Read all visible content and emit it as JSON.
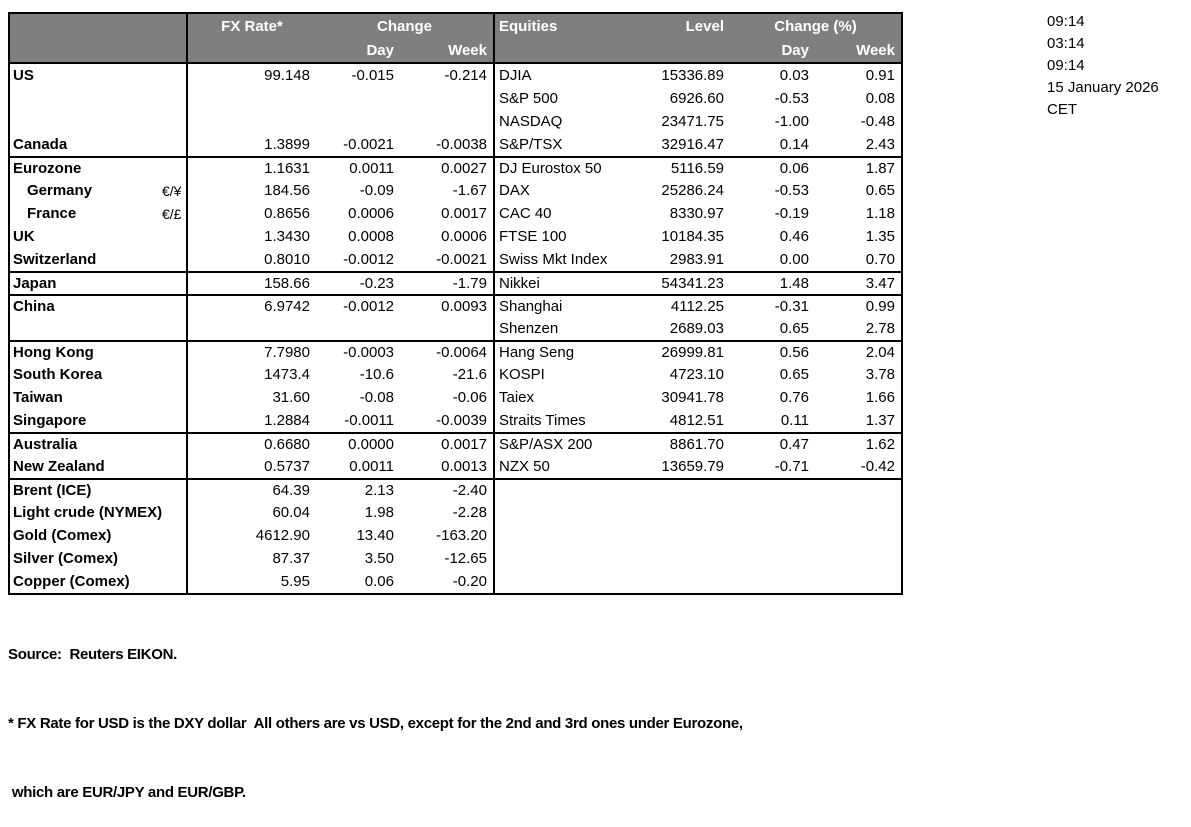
{
  "colors": {
    "header_bg": "#7f7f7f",
    "header_text": "#ffffff",
    "border": "#000000",
    "text": "#000000"
  },
  "header": {
    "fx_rate": "FX Rate*",
    "change": "Change",
    "equities": "Equities",
    "level": "Level",
    "change_pct": "Change (%)",
    "day": "Day",
    "week": "Week"
  },
  "rows": [
    {
      "label": "US",
      "sym": "",
      "fx": "99.148",
      "fx_day": "-0.015",
      "fx_week": "-0.214",
      "eq": "DJIA",
      "level": "15336.89",
      "eq_day": "0.03",
      "eq_week": "0.91",
      "group_start": false,
      "indent": false
    },
    {
      "label": "",
      "sym": "",
      "fx": "",
      "fx_day": "",
      "fx_week": "",
      "eq": "S&P 500",
      "level": "6926.60",
      "eq_day": "-0.53",
      "eq_week": "0.08",
      "group_start": false,
      "indent": false
    },
    {
      "label": "",
      "sym": "",
      "fx": "",
      "fx_day": "",
      "fx_week": "",
      "eq": "NASDAQ",
      "level": "23471.75",
      "eq_day": "-1.00",
      "eq_week": "-0.48",
      "group_start": false,
      "indent": false
    },
    {
      "label": "Canada",
      "sym": "",
      "fx": "1.3899",
      "fx_day": "-0.0021",
      "fx_week": "-0.0038",
      "eq": "S&P/TSX",
      "level": "32916.47",
      "eq_day": "0.14",
      "eq_week": "2.43",
      "group_start": false,
      "indent": false
    },
    {
      "label": "Eurozone",
      "sym": "",
      "fx": "1.1631",
      "fx_day": "0.0011",
      "fx_week": "0.0027",
      "eq": "DJ Eurostox 50",
      "level": "5116.59",
      "eq_day": "0.06",
      "eq_week": "1.87",
      "group_start": true,
      "indent": false
    },
    {
      "label": "Germany",
      "sym": "€/¥",
      "fx": "184.56",
      "fx_day": "-0.09",
      "fx_week": "-1.67",
      "eq": "DAX",
      "level": "25286.24",
      "eq_day": "-0.53",
      "eq_week": "0.65",
      "group_start": false,
      "indent": true
    },
    {
      "label": "France",
      "sym": "€/£",
      "fx": "0.8656",
      "fx_day": "0.0006",
      "fx_week": "0.0017",
      "eq": "CAC 40",
      "level": "8330.97",
      "eq_day": "-0.19",
      "eq_week": "1.18",
      "group_start": false,
      "indent": true
    },
    {
      "label": "UK",
      "sym": "",
      "fx": "1.3430",
      "fx_day": "0.0008",
      "fx_week": "0.0006",
      "eq": "FTSE 100",
      "level": "10184.35",
      "eq_day": "0.46",
      "eq_week": "1.35",
      "group_start": false,
      "indent": false
    },
    {
      "label": "Switzerland",
      "sym": "",
      "fx": "0.8010",
      "fx_day": "-0.0012",
      "fx_week": "-0.0021",
      "eq": "Swiss Mkt Index",
      "level": "2983.91",
      "eq_day": "0.00",
      "eq_week": "0.70",
      "group_start": false,
      "indent": false
    },
    {
      "label": "Japan",
      "sym": "",
      "fx": "158.66",
      "fx_day": "-0.23",
      "fx_week": "-1.79",
      "eq": "Nikkei",
      "level": "54341.23",
      "eq_day": "1.48",
      "eq_week": "3.47",
      "group_start": true,
      "indent": false
    },
    {
      "label": "China",
      "sym": "",
      "fx": "6.9742",
      "fx_day": "-0.0012",
      "fx_week": "0.0093",
      "eq": "Shanghai",
      "level": "4112.25",
      "eq_day": "-0.31",
      "eq_week": "0.99",
      "group_start": true,
      "indent": false
    },
    {
      "label": "",
      "sym": "",
      "fx": "",
      "fx_day": "",
      "fx_week": "",
      "eq": "Shenzen",
      "level": "2689.03",
      "eq_day": "0.65",
      "eq_week": "2.78",
      "group_start": false,
      "indent": false
    },
    {
      "label": "Hong Kong",
      "sym": "",
      "fx": "7.7980",
      "fx_day": "-0.0003",
      "fx_week": "-0.0064",
      "eq": "Hang Seng",
      "level": "26999.81",
      "eq_day": "0.56",
      "eq_week": "2.04",
      "group_start": true,
      "indent": false
    },
    {
      "label": "South Korea",
      "sym": "",
      "fx": "1473.4",
      "fx_day": "-10.6",
      "fx_week": "-21.6",
      "eq": "KOSPI",
      "level": "4723.10",
      "eq_day": "0.65",
      "eq_week": "3.78",
      "group_start": false,
      "indent": false
    },
    {
      "label": "Taiwan",
      "sym": "",
      "fx": "31.60",
      "fx_day": "-0.08",
      "fx_week": "-0.06",
      "eq": "Taiex",
      "level": "30941.78",
      "eq_day": "0.76",
      "eq_week": "1.66",
      "group_start": false,
      "indent": false
    },
    {
      "label": "Singapore",
      "sym": "",
      "fx": "1.2884",
      "fx_day": "-0.0011",
      "fx_week": "-0.0039",
      "eq": "Straits Times",
      "level": "4812.51",
      "eq_day": "0.11",
      "eq_week": "1.37",
      "group_start": false,
      "indent": false
    },
    {
      "label": "Australia",
      "sym": "",
      "fx": "0.6680",
      "fx_day": "0.0000",
      "fx_week": "0.0017",
      "eq": "S&P/ASX  200",
      "level": "8861.70",
      "eq_day": "0.47",
      "eq_week": "1.62",
      "group_start": true,
      "indent": false
    },
    {
      "label": "New Zealand",
      "sym": "",
      "fx": "0.5737",
      "fx_day": "0.0011",
      "fx_week": "0.0013",
      "eq": "NZX 50",
      "level": "13659.79",
      "eq_day": "-0.71",
      "eq_week": "-0.42",
      "group_start": false,
      "indent": false
    },
    {
      "label": "Brent (ICE)",
      "sym": "",
      "fx": "64.39",
      "fx_day": "2.13",
      "fx_week": "-2.40",
      "eq": "",
      "level": "",
      "eq_day": "",
      "eq_week": "",
      "group_start": true,
      "indent": false
    },
    {
      "label": "Light crude (NYMEX)",
      "sym": "",
      "fx": "60.04",
      "fx_day": "1.98",
      "fx_week": "-2.28",
      "eq": "",
      "level": "",
      "eq_day": "",
      "eq_week": "",
      "group_start": false,
      "indent": false
    },
    {
      "label": "Gold (Comex)",
      "sym": "",
      "fx": "4612.90",
      "fx_day": "13.40",
      "fx_week": "-163.20",
      "eq": "",
      "level": "",
      "eq_day": "",
      "eq_week": "",
      "group_start": false,
      "indent": false
    },
    {
      "label": "Silver (Comex)",
      "sym": "",
      "fx": "87.37",
      "fx_day": "3.50",
      "fx_week": "-12.65",
      "eq": "",
      "level": "",
      "eq_day": "",
      "eq_week": "",
      "group_start": false,
      "indent": false
    },
    {
      "label": "Copper (Comex)",
      "sym": "",
      "fx": "5.95",
      "fx_day": "0.06",
      "fx_week": "-0.20",
      "eq": "",
      "level": "",
      "eq_day": "",
      "eq_week": "",
      "group_start": false,
      "indent": false
    }
  ],
  "timestamps": [
    "09:14",
    "03:14",
    "09:14",
    "15 January 2026",
    "CET"
  ],
  "footer": {
    "source": "Source:  Reuters EIKON.",
    "note1": "* FX Rate for USD is the DXY dollar  All others are vs USD, except for the 2nd and 3rd ones under Eurozone,",
    "note2": " which are EUR/JPY and EUR/GBP."
  }
}
